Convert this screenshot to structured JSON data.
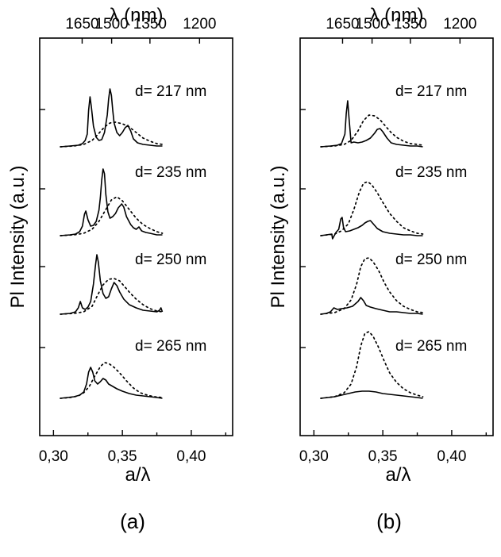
{
  "chart_data": [
    {
      "panel_label": "(a)",
      "type": "line",
      "ylabel": "Pl Intensity (a.u.)",
      "xlabel": "a/λ",
      "top_xlabel": "λ (nm)",
      "xlim": [
        0.29,
        0.43
      ],
      "x_ticks": [
        "0,30",
        "0,35",
        "0,40"
      ],
      "x_tick_values": [
        0.3,
        0.35,
        0.4
      ],
      "top_ticks": [
        "1650",
        "1500",
        "1350",
        "1200"
      ],
      "top_tick_values": [
        0.3208,
        0.3422,
        0.37,
        0.406
      ],
      "curves": [
        {
          "label": "d= 217 nm",
          "series": [
            {
              "name": "solid",
              "x": [
                0.305,
                0.312,
                0.318,
                0.321,
                0.323,
                0.3245,
                0.3255,
                0.3265,
                0.3275,
                0.329,
                0.331,
                0.333,
                0.335,
                0.337,
                0.339,
                0.34,
                0.341,
                0.342,
                0.343,
                0.344,
                0.346,
                0.348,
                0.35,
                0.352,
                0.354,
                0.356,
                0.358,
                0.361,
                0.365,
                0.37,
                0.375,
                0.379
              ],
              "y": [
                0.0,
                0.01,
                0.02,
                0.04,
                0.08,
                0.16,
                0.46,
                0.63,
                0.5,
                0.26,
                0.12,
                0.08,
                0.09,
                0.18,
                0.4,
                0.6,
                0.73,
                0.65,
                0.46,
                0.3,
                0.18,
                0.14,
                0.18,
                0.24,
                0.27,
                0.2,
                0.1,
                0.05,
                0.03,
                0.02,
                0.01,
                0.01
              ]
            },
            {
              "name": "dotted",
              "x": [
                0.305,
                0.315,
                0.322,
                0.328,
                0.333,
                0.337,
                0.341,
                0.345,
                0.35,
                0.355,
                0.36,
                0.365,
                0.37,
                0.375,
                0.379
              ],
              "y": [
                0.0,
                0.01,
                0.03,
                0.08,
                0.17,
                0.25,
                0.3,
                0.31,
                0.29,
                0.25,
                0.18,
                0.11,
                0.07,
                0.04,
                0.03
              ]
            }
          ]
        },
        {
          "label": "d= 235 nm",
          "series": [
            {
              "name": "solid",
              "x": [
                0.305,
                0.312,
                0.316,
                0.319,
                0.321,
                0.3225,
                0.3235,
                0.325,
                0.327,
                0.329,
                0.331,
                0.333,
                0.334,
                0.335,
                0.336,
                0.337,
                0.338,
                0.3395,
                0.341,
                0.343,
                0.345,
                0.347,
                0.3495,
                0.351,
                0.353,
                0.356,
                0.358,
                0.36,
                0.362,
                0.364,
                0.367,
                0.37,
                0.375,
                0.379
              ],
              "y": [
                0.0,
                0.01,
                0.02,
                0.05,
                0.12,
                0.27,
                0.31,
                0.2,
                0.12,
                0.13,
                0.18,
                0.32,
                0.48,
                0.7,
                0.84,
                0.78,
                0.52,
                0.3,
                0.22,
                0.24,
                0.28,
                0.35,
                0.4,
                0.36,
                0.24,
                0.14,
                0.1,
                0.08,
                0.11,
                0.06,
                0.04,
                0.03,
                0.01,
                0.01
              ]
            },
            {
              "name": "dotted",
              "x": [
                0.305,
                0.315,
                0.322,
                0.328,
                0.333,
                0.338,
                0.342,
                0.346,
                0.35,
                0.355,
                0.36,
                0.365,
                0.37,
                0.375,
                0.379
              ],
              "y": [
                0.0,
                0.01,
                0.03,
                0.08,
                0.18,
                0.33,
                0.45,
                0.49,
                0.44,
                0.33,
                0.22,
                0.14,
                0.09,
                0.05,
                0.03
              ]
            }
          ]
        },
        {
          "label": "d= 250 nm",
          "series": [
            {
              "name": "solid",
              "x": [
                0.305,
                0.312,
                0.316,
                0.318,
                0.3195,
                0.321,
                0.323,
                0.325,
                0.327,
                0.329,
                0.3305,
                0.3315,
                0.3325,
                0.334,
                0.336,
                0.338,
                0.34,
                0.342,
                0.344,
                0.346,
                0.348,
                0.351,
                0.355,
                0.36,
                0.365,
                0.37,
                0.375,
                0.377,
                0.378,
                0.379
              ],
              "y": [
                0.0,
                0.01,
                0.03,
                0.08,
                0.16,
                0.08,
                0.06,
                0.09,
                0.16,
                0.38,
                0.62,
                0.75,
                0.66,
                0.42,
                0.26,
                0.2,
                0.22,
                0.32,
                0.4,
                0.36,
                0.28,
                0.19,
                0.12,
                0.08,
                0.05,
                0.04,
                0.03,
                0.05,
                0.08,
                0.03
              ]
            },
            {
              "name": "dotted",
              "x": [
                0.305,
                0.315,
                0.322,
                0.328,
                0.332,
                0.336,
                0.34,
                0.344,
                0.348,
                0.352,
                0.356,
                0.36,
                0.365,
                0.37,
                0.375,
                0.379
              ],
              "y": [
                0.0,
                0.01,
                0.03,
                0.1,
                0.24,
                0.37,
                0.44,
                0.45,
                0.42,
                0.34,
                0.26,
                0.19,
                0.12,
                0.07,
                0.04,
                0.03
              ]
            }
          ]
        },
        {
          "label": "d= 265 nm",
          "series": [
            {
              "name": "solid",
              "x": [
                0.305,
                0.31,
                0.315,
                0.319,
                0.322,
                0.324,
                0.3255,
                0.327,
                0.3285,
                0.33,
                0.332,
                0.334,
                0.336,
                0.338,
                0.34,
                0.343,
                0.346,
                0.35,
                0.355,
                0.36,
                0.365,
                0.37,
                0.375,
                0.379
              ],
              "y": [
                0.0,
                0.01,
                0.02,
                0.04,
                0.08,
                0.18,
                0.33,
                0.39,
                0.33,
                0.22,
                0.18,
                0.21,
                0.25,
                0.23,
                0.18,
                0.15,
                0.12,
                0.09,
                0.06,
                0.04,
                0.03,
                0.02,
                0.01,
                0.0
              ]
            },
            {
              "name": "dotted",
              "x": [
                0.305,
                0.312,
                0.318,
                0.322,
                0.326,
                0.33,
                0.334,
                0.337,
                0.34,
                0.344,
                0.348,
                0.353,
                0.358,
                0.363,
                0.368,
                0.373,
                0.379
              ],
              "y": [
                0.0,
                0.01,
                0.03,
                0.07,
                0.15,
                0.28,
                0.4,
                0.45,
                0.44,
                0.39,
                0.32,
                0.22,
                0.13,
                0.07,
                0.04,
                0.02,
                0.01
              ]
            }
          ]
        }
      ]
    },
    {
      "panel_label": "(b)",
      "type": "line",
      "ylabel": "Pl Intensity (a.u.)",
      "xlabel": "a/λ",
      "top_xlabel": "λ (nm)",
      "xlim": [
        0.29,
        0.43
      ],
      "x_ticks": [
        "0,30",
        "0,35",
        "0,40"
      ],
      "x_tick_values": [
        0.3,
        0.35,
        0.4
      ],
      "top_ticks": [
        "1650",
        "1500",
        "1350",
        "1200"
      ],
      "top_tick_values": [
        0.3208,
        0.3422,
        0.37,
        0.406
      ],
      "curves": [
        {
          "label": "d= 217 nm",
          "series": [
            {
              "name": "solid",
              "x": [
                0.305,
                0.312,
                0.317,
                0.32,
                0.3225,
                0.3235,
                0.3245,
                0.3255,
                0.327,
                0.329,
                0.332,
                0.335,
                0.338,
                0.341,
                0.344,
                0.346,
                0.348,
                0.35,
                0.353,
                0.356,
                0.36,
                0.365,
                0.37,
                0.375,
                0.379
              ],
              "y": [
                0.0,
                0.01,
                0.02,
                0.04,
                0.16,
                0.42,
                0.58,
                0.36,
                0.05,
                0.06,
                0.05,
                0.06,
                0.08,
                0.11,
                0.17,
                0.22,
                0.23,
                0.19,
                0.11,
                0.05,
                0.03,
                0.02,
                0.01,
                0.01,
                0.0
              ]
            },
            {
              "name": "dotted",
              "x": [
                0.305,
                0.315,
                0.322,
                0.327,
                0.332,
                0.336,
                0.34,
                0.344,
                0.348,
                0.352,
                0.356,
                0.36,
                0.365,
                0.37,
                0.375,
                0.379
              ],
              "y": [
                0.0,
                0.01,
                0.03,
                0.08,
                0.2,
                0.33,
                0.4,
                0.39,
                0.34,
                0.26,
                0.18,
                0.12,
                0.07,
                0.04,
                0.03,
                0.02
              ]
            }
          ]
        },
        {
          "label": "d= 235 nm",
          "series": [
            {
              "name": "solid",
              "x": [
                0.305,
                0.309,
                0.313,
                0.3135,
                0.316,
                0.318,
                0.3195,
                0.3205,
                0.3215,
                0.323,
                0.326,
                0.329,
                0.332,
                0.335,
                0.337,
                0.339,
                0.341,
                0.343,
                0.346,
                0.35,
                0.355,
                0.36,
                0.365,
                0.37,
                0.375,
                0.379
              ],
              "y": [
                0.0,
                0.01,
                0.02,
                -0.04,
                0.04,
                0.08,
                0.21,
                0.23,
                0.1,
                0.05,
                0.06,
                0.08,
                0.1,
                0.13,
                0.16,
                0.18,
                0.19,
                0.15,
                0.09,
                0.05,
                0.03,
                0.02,
                0.01,
                0.01,
                0.0,
                0.0
              ]
            },
            {
              "name": "dotted",
              "x": [
                0.305,
                0.315,
                0.32,
                0.325,
                0.329,
                0.333,
                0.336,
                0.339,
                0.342,
                0.346,
                0.35,
                0.355,
                0.36,
                0.365,
                0.37,
                0.375,
                0.379
              ],
              "y": [
                0.0,
                0.02,
                0.06,
                0.15,
                0.33,
                0.55,
                0.66,
                0.68,
                0.64,
                0.54,
                0.42,
                0.28,
                0.18,
                0.1,
                0.06,
                0.03,
                0.02
              ]
            }
          ]
        },
        {
          "label": "d= 250 nm",
          "series": [
            {
              "name": "solid",
              "x": [
                0.305,
                0.309,
                0.312,
                0.3145,
                0.317,
                0.32,
                0.324,
                0.328,
                0.332,
                0.334,
                0.336,
                0.338,
                0.341,
                0.345,
                0.35,
                0.355,
                0.36,
                0.365,
                0.37,
                0.375,
                0.379
              ],
              "y": [
                0.0,
                0.01,
                0.03,
                0.08,
                0.06,
                0.07,
                0.08,
                0.1,
                0.16,
                0.21,
                0.17,
                0.11,
                0.09,
                0.07,
                0.05,
                0.03,
                0.03,
                0.02,
                0.01,
                0.01,
                0.0
              ]
            },
            {
              "name": "dotted",
              "x": [
                0.305,
                0.315,
                0.322,
                0.327,
                0.331,
                0.334,
                0.337,
                0.34,
                0.343,
                0.347,
                0.351,
                0.355,
                0.36,
                0.365,
                0.37,
                0.375,
                0.379
              ],
              "y": [
                0.0,
                0.02,
                0.07,
                0.18,
                0.38,
                0.6,
                0.7,
                0.71,
                0.66,
                0.55,
                0.4,
                0.28,
                0.17,
                0.1,
                0.06,
                0.03,
                0.02
              ]
            }
          ]
        },
        {
          "label": "d= 265 nm",
          "series": [
            {
              "name": "solid",
              "x": [
                0.305,
                0.31,
                0.315,
                0.32,
                0.325,
                0.33,
                0.335,
                0.34,
                0.345,
                0.35,
                0.355,
                0.36,
                0.365,
                0.37,
                0.375,
                0.379
              ],
              "y": [
                0.0,
                0.01,
                0.02,
                0.04,
                0.06,
                0.08,
                0.09,
                0.09,
                0.08,
                0.06,
                0.05,
                0.04,
                0.03,
                0.02,
                0.01,
                0.0
              ]
            },
            {
              "name": "dotted",
              "x": [
                0.305,
                0.315,
                0.322,
                0.327,
                0.331,
                0.334,
                0.337,
                0.34,
                0.343,
                0.347,
                0.351,
                0.355,
                0.36,
                0.365,
                0.37,
                0.375,
                0.379
              ],
              "y": [
                0.0,
                0.02,
                0.07,
                0.18,
                0.4,
                0.66,
                0.82,
                0.84,
                0.78,
                0.64,
                0.47,
                0.32,
                0.2,
                0.12,
                0.07,
                0.04,
                0.02
              ]
            }
          ]
        }
      ]
    }
  ]
}
